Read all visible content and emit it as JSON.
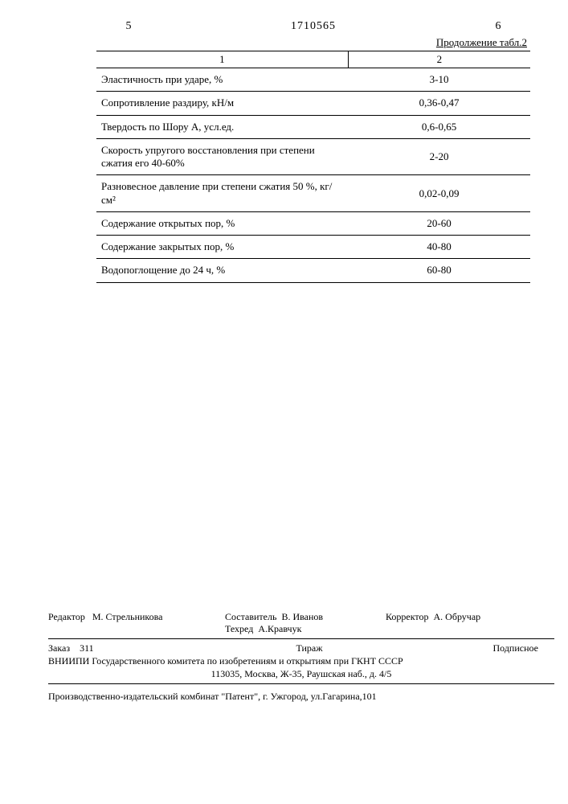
{
  "header": {
    "left_page": "5",
    "doc_number": "1710565",
    "right_page": "6",
    "continuation": "Продолжение табл.2"
  },
  "table": {
    "col1_header": "1",
    "col2_header": "2",
    "rows": [
      {
        "label": "Эластичность при ударе, %",
        "value": "3-10"
      },
      {
        "label": "Сопротивление раздиру, кН/м",
        "value": "0,36-0,47"
      },
      {
        "label": "Твердость по Шору А, усл.ед.",
        "value": "0,6-0,65"
      },
      {
        "label": "Скорость упругого восстановления при степени сжатия его 40-60%",
        "value": "2-20"
      },
      {
        "label": "Разновесное давление при степени сжатия 50 %, кг/см²",
        "value": "0,02-0,09"
      },
      {
        "label": "Содержание открытых пор, %",
        "value": "20-60"
      },
      {
        "label": "Содержание закрытых пор, %",
        "value": "40-80"
      },
      {
        "label": "Водопоглощение до 24 ч, %",
        "value": "60-80"
      }
    ]
  },
  "footer": {
    "editor_label": "Редактор",
    "editor_name": "М. Стрельникова",
    "compiler_label": "Составитель",
    "compiler_name": "В. Иванов",
    "tech_editor_label": "Техред",
    "tech_editor_name": "А.Кравчук",
    "corrector_label": "Корректор",
    "corrector_name": "А. Обручар",
    "order_label": "Заказ",
    "order_num": "311",
    "print_run_label": "Тираж",
    "subscription": "Подписное",
    "org_line1": "ВНИИПИ Государственного комитета по изобретениям и открытиям при ГКНТ СССР",
    "org_line2": "113035, Москва, Ж-35, Раушская наб., д. 4/5",
    "printer": "Производственно-издательский комбинат \"Патент\", г. Ужгород, ул.Гагарина,101"
  }
}
